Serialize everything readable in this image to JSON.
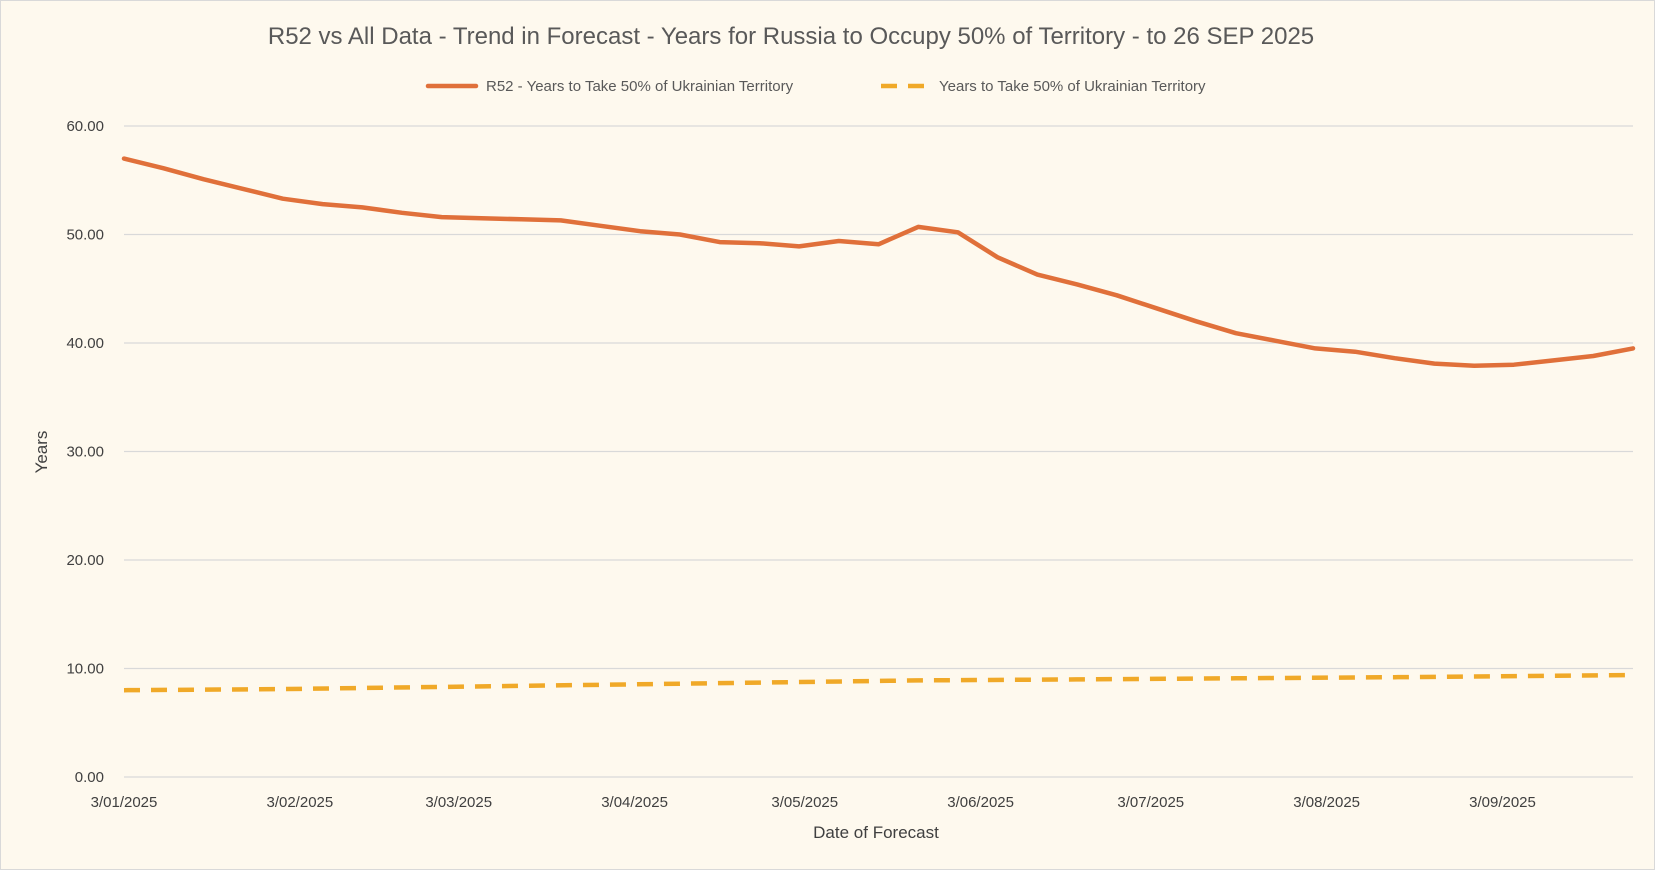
{
  "chart_data": {
    "type": "line",
    "title": "R52 vs All Data  - Trend in Forecast - Years for Russia to Occupy 50% of Territory - to 26 SEP 2025",
    "xlabel": "Date of Forecast",
    "ylabel": "Years",
    "ylim": [
      0,
      60
    ],
    "yticks": [
      "0.00",
      "10.00",
      "20.00",
      "30.00",
      "40.00",
      "50.00",
      "60.00"
    ],
    "xlim": [
      "2025-01-03",
      "2025-09-26"
    ],
    "xticks": [
      {
        "date": "2025-01-03",
        "label": "3/01/2025"
      },
      {
        "date": "2025-02-03",
        "label": "3/02/2025"
      },
      {
        "date": "2025-03-03",
        "label": "3/03/2025"
      },
      {
        "date": "2025-04-03",
        "label": "3/04/2025"
      },
      {
        "date": "2025-05-03",
        "label": "3/05/2025"
      },
      {
        "date": "2025-06-03",
        "label": "3/06/2025"
      },
      {
        "date": "2025-07-03",
        "label": "3/07/2025"
      },
      {
        "date": "2025-08-03",
        "label": "3/08/2025"
      },
      {
        "date": "2025-09-03",
        "label": "3/09/2025"
      }
    ],
    "grid": true,
    "legend_position": "top",
    "series": [
      {
        "name": "R52 - Years to Take  50% of Ukrainian Territory",
        "color": "#e0703a",
        "style": "solid",
        "points": [
          {
            "x": "2025-01-03",
            "y": 57.0
          },
          {
            "x": "2025-01-10",
            "y": 56.1
          },
          {
            "x": "2025-01-17",
            "y": 55.1
          },
          {
            "x": "2025-01-24",
            "y": 54.2
          },
          {
            "x": "2025-01-31",
            "y": 53.3
          },
          {
            "x": "2025-02-07",
            "y": 52.8
          },
          {
            "x": "2025-02-14",
            "y": 52.5
          },
          {
            "x": "2025-02-21",
            "y": 52.0
          },
          {
            "x": "2025-02-28",
            "y": 51.6
          },
          {
            "x": "2025-03-07",
            "y": 51.5
          },
          {
            "x": "2025-03-14",
            "y": 51.4
          },
          {
            "x": "2025-03-21",
            "y": 51.3
          },
          {
            "x": "2025-03-28",
            "y": 50.8
          },
          {
            "x": "2025-04-04",
            "y": 50.3
          },
          {
            "x": "2025-04-11",
            "y": 50.0
          },
          {
            "x": "2025-04-18",
            "y": 49.3
          },
          {
            "x": "2025-04-25",
            "y": 49.2
          },
          {
            "x": "2025-05-02",
            "y": 48.9
          },
          {
            "x": "2025-05-09",
            "y": 49.4
          },
          {
            "x": "2025-05-16",
            "y": 49.1
          },
          {
            "x": "2025-05-23",
            "y": 50.7
          },
          {
            "x": "2025-05-30",
            "y": 50.2
          },
          {
            "x": "2025-06-06",
            "y": 47.9
          },
          {
            "x": "2025-06-13",
            "y": 46.3
          },
          {
            "x": "2025-06-20",
            "y": 45.4
          },
          {
            "x": "2025-06-27",
            "y": 44.4
          },
          {
            "x": "2025-07-04",
            "y": 43.2
          },
          {
            "x": "2025-07-11",
            "y": 42.0
          },
          {
            "x": "2025-07-18",
            "y": 40.9
          },
          {
            "x": "2025-07-25",
            "y": 40.2
          },
          {
            "x": "2025-08-01",
            "y": 39.5
          },
          {
            "x": "2025-08-08",
            "y": 39.2
          },
          {
            "x": "2025-08-15",
            "y": 38.6
          },
          {
            "x": "2025-08-22",
            "y": 38.1
          },
          {
            "x": "2025-08-29",
            "y": 37.9
          },
          {
            "x": "2025-09-05",
            "y": 38.0
          },
          {
            "x": "2025-09-12",
            "y": 38.4
          },
          {
            "x": "2025-09-19",
            "y": 38.8
          },
          {
            "x": "2025-09-26",
            "y": 39.5
          }
        ]
      },
      {
        "name": "Years to Take  50% of Ukrainian Territory",
        "color": "#f0a928",
        "style": "dashed",
        "points": [
          {
            "x": "2025-01-03",
            "y": 8.0
          },
          {
            "x": "2025-01-31",
            "y": 8.1
          },
          {
            "x": "2025-02-28",
            "y": 8.3
          },
          {
            "x": "2025-03-28",
            "y": 8.5
          },
          {
            "x": "2025-04-25",
            "y": 8.7
          },
          {
            "x": "2025-05-23",
            "y": 8.9
          },
          {
            "x": "2025-06-20",
            "y": 9.0
          },
          {
            "x": "2025-07-18",
            "y": 9.1
          },
          {
            "x": "2025-08-15",
            "y": 9.2
          },
          {
            "x": "2025-09-26",
            "y": 9.4
          }
        ]
      }
    ]
  }
}
